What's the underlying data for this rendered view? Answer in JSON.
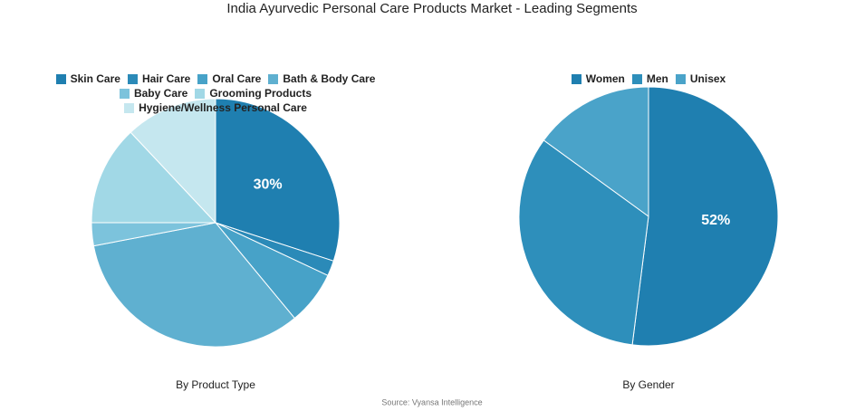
{
  "title": "India Ayurvedic Personal Care Products Market - Leading Segments",
  "source": "Source: Vyansa Intelligence",
  "chart_data": [
    {
      "type": "pie",
      "title": "By Product Type",
      "categories": [
        "Skin Care",
        "Hair Care",
        "Oral Care",
        "Bath & Body Care",
        "Baby Care",
        "Grooming Products",
        "Hygiene/Wellness Personal Care"
      ],
      "values": [
        30,
        2,
        7,
        33,
        3,
        13,
        12
      ],
      "value_labels": [
        "30%",
        null,
        null,
        null,
        null,
        null,
        null
      ],
      "colors": [
        "#1f7fb0",
        "#2b8ab8",
        "#47a2c8",
        "#5fb0d0",
        "#7cc3dc",
        "#a1d8e6",
        "#c5e7ef"
      ],
      "legend": "top"
    },
    {
      "type": "pie",
      "title": "By Gender",
      "categories": [
        "Women",
        "Men",
        "Unisex"
      ],
      "values": [
        52,
        33,
        15
      ],
      "value_labels": [
        "52%",
        null,
        null
      ],
      "colors": [
        "#1f7fb0",
        "#2e8fbb",
        "#4aa3c9"
      ],
      "legend": "top"
    }
  ]
}
